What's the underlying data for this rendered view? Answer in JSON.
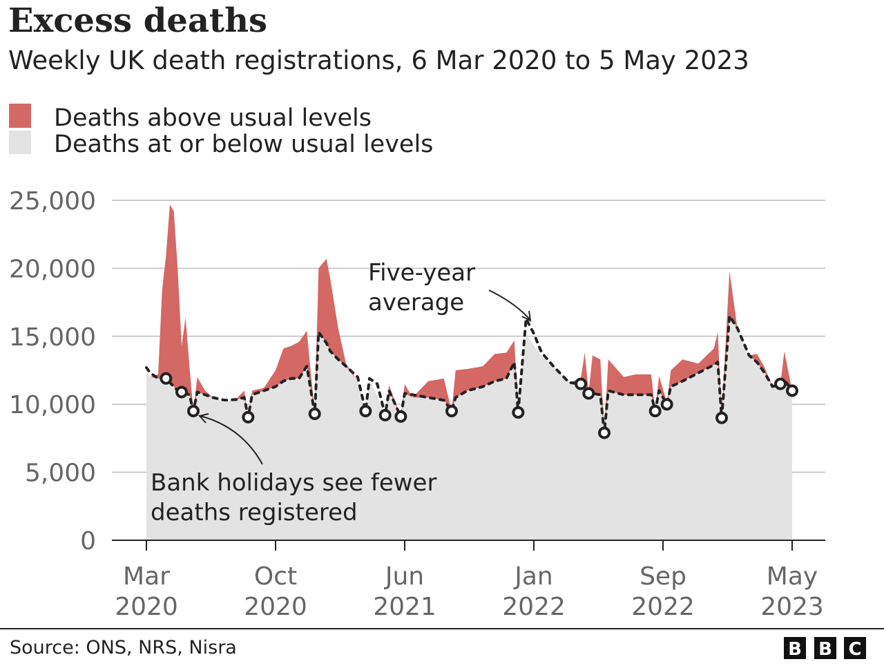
{
  "chart_data": {
    "type": "area",
    "title": "Excess deaths",
    "subtitle": "Weekly UK death registrations, 6 Mar 2020 to 5 May 2023",
    "legend": [
      {
        "label": "Deaths above usual levels",
        "color": "#d46864"
      },
      {
        "label": "Deaths at or below usual levels",
        "color": "#e3e3e3"
      }
    ],
    "legend_placement": "top-left",
    "grid": true,
    "ylim": [
      0,
      25000
    ],
    "yticks": [
      "0",
      "5,000",
      "10,000",
      "15,000",
      "20,000",
      "25,000"
    ],
    "ytick_values": [
      0,
      5000,
      10000,
      15000,
      20000,
      25000
    ],
    "xlim": [
      "2020-03-06",
      "2023-05-05"
    ],
    "xticks": [
      {
        "date": "2020-03-06",
        "month": "Mar",
        "year": "2020"
      },
      {
        "date": "2020-10-23",
        "month": "Oct",
        "year": "2020"
      },
      {
        "date": "2021-06-11",
        "month": "Jun",
        "year": "2021"
      },
      {
        "date": "2022-01-28",
        "month": "Jan",
        "year": "2022"
      },
      {
        "date": "2022-09-16",
        "month": "Sep",
        "year": "2022"
      },
      {
        "date": "2023-05-05",
        "month": "May",
        "year": "2023"
      }
    ],
    "columns": [
      "week_ending",
      "deaths",
      "five_year_average"
    ],
    "points": [
      [
        "2020-03-06",
        12300,
        12700
      ],
      [
        "2020-03-13",
        12000,
        12300
      ],
      [
        "2020-03-27",
        12200,
        11900
      ],
      [
        "2020-04-03",
        18400,
        11900
      ],
      [
        "2020-04-10",
        20900,
        11900
      ],
      [
        "2020-04-17",
        24700,
        11600
      ],
      [
        "2020-04-24",
        24200,
        11300
      ],
      [
        "2020-05-01",
        19900,
        11000
      ],
      [
        "2020-05-08",
        14300,
        10900
      ],
      [
        "2020-05-15",
        16400,
        10800
      ],
      [
        "2020-05-22",
        12800,
        10700
      ],
      [
        "2020-05-29",
        9500,
        9500
      ],
      [
        "2020-06-05",
        12000,
        10900
      ],
      [
        "2020-06-19",
        11000,
        10700
      ],
      [
        "2020-07-03",
        10500,
        10500
      ],
      [
        "2020-07-24",
        10100,
        10300
      ],
      [
        "2020-08-14",
        10400,
        10350
      ],
      [
        "2020-08-28",
        11000,
        10500
      ],
      [
        "2020-09-04",
        9100,
        9050
      ],
      [
        "2020-09-11",
        11000,
        10700
      ],
      [
        "2020-10-02",
        11200,
        11000
      ],
      [
        "2020-10-23",
        12500,
        11300
      ],
      [
        "2020-11-06",
        14100,
        11700
      ],
      [
        "2020-11-20",
        14300,
        11900
      ],
      [
        "2020-12-04",
        14600,
        11900
      ],
      [
        "2020-12-18",
        15400,
        12800
      ],
      [
        "2021-01-01",
        9300,
        9300
      ],
      [
        "2021-01-08",
        20000,
        15300
      ],
      [
        "2021-01-22",
        20700,
        14500
      ],
      [
        "2021-01-29",
        19200,
        13900
      ],
      [
        "2021-02-12",
        15600,
        13300
      ],
      [
        "2021-02-26",
        13000,
        12800
      ],
      [
        "2021-03-19",
        11700,
        12000
      ],
      [
        "2021-04-02",
        9500,
        9500
      ],
      [
        "2021-04-09",
        11700,
        11900
      ],
      [
        "2021-04-23",
        10600,
        11500
      ],
      [
        "2021-05-07",
        9200,
        9200
      ],
      [
        "2021-05-14",
        11400,
        11000
      ],
      [
        "2021-06-04",
        9100,
        9100
      ],
      [
        "2021-06-11",
        11500,
        10800
      ],
      [
        "2021-06-25",
        10500,
        10700
      ],
      [
        "2021-07-23",
        11700,
        10500
      ],
      [
        "2021-08-20",
        11900,
        10300
      ],
      [
        "2021-09-03",
        9500,
        9500
      ],
      [
        "2021-09-10",
        12500,
        10500
      ],
      [
        "2021-10-01",
        12600,
        11000
      ],
      [
        "2021-10-29",
        12800,
        11300
      ],
      [
        "2021-11-19",
        13700,
        11700
      ],
      [
        "2021-12-10",
        13800,
        11900
      ],
      [
        "2021-12-24",
        14700,
        13100
      ],
      [
        "2021-12-31",
        9400,
        9400
      ],
      [
        "2022-01-14",
        15100,
        16300
      ],
      [
        "2022-01-28",
        14300,
        15200
      ],
      [
        "2022-02-11",
        13500,
        13800
      ],
      [
        "2022-03-04",
        12800,
        12800
      ],
      [
        "2022-04-01",
        11600,
        11600
      ],
      [
        "2022-04-22",
        11900,
        11500
      ],
      [
        "2022-04-29",
        13800,
        11200
      ],
      [
        "2022-05-06",
        10900,
        10800
      ],
      [
        "2022-05-13",
        13600,
        10800
      ],
      [
        "2022-05-27",
        13300,
        10700
      ],
      [
        "2022-06-03",
        7900,
        7900
      ],
      [
        "2022-06-10",
        13300,
        11000
      ],
      [
        "2022-07-08",
        12000,
        10700
      ],
      [
        "2022-07-29",
        12200,
        10700
      ],
      [
        "2022-08-26",
        12200,
        10700
      ],
      [
        "2022-09-02",
        9500,
        9500
      ],
      [
        "2022-09-09",
        12100,
        11000
      ],
      [
        "2022-09-23",
        10100,
        10000
      ],
      [
        "2022-09-30",
        12500,
        11300
      ],
      [
        "2022-10-21",
        13300,
        11700
      ],
      [
        "2022-11-18",
        13000,
        12300
      ],
      [
        "2022-12-16",
        14100,
        12900
      ],
      [
        "2022-12-23",
        15300,
        13100
      ],
      [
        "2022-12-30",
        9000,
        9000
      ],
      [
        "2023-01-13",
        19800,
        16500
      ],
      [
        "2023-01-27",
        15600,
        15600
      ],
      [
        "2023-02-17",
        13600,
        13600
      ],
      [
        "2023-03-03",
        13700,
        13100
      ],
      [
        "2023-03-17",
        12700,
        12300
      ],
      [
        "2023-03-31",
        11300,
        11300
      ],
      [
        "2023-04-14",
        11500,
        11500
      ],
      [
        "2023-04-21",
        13900,
        11800
      ],
      [
        "2023-05-05",
        11000,
        11000
      ]
    ],
    "bank_holiday_weeks": [
      "2020-04-10",
      "2020-05-08",
      "2020-05-29",
      "2020-09-04",
      "2021-01-01",
      "2021-04-02",
      "2021-05-07",
      "2021-06-04",
      "2021-09-03",
      "2021-12-31",
      "2022-04-22",
      "2022-05-06",
      "2022-06-03",
      "2022-09-02",
      "2022-09-23",
      "2022-12-30",
      "2023-04-14",
      "2023-05-05"
    ],
    "annotations": {
      "average_line_1": "Five-year",
      "average_line_2": "average",
      "holiday_line_1": "Bank holidays see fewer",
      "holiday_line_2": "deaths registered"
    },
    "colors": {
      "excess": "#d46864",
      "below": "#e3e3e3",
      "average_line": "#222222"
    }
  },
  "footer": {
    "source": "Source: ONS, NRS, Nisra",
    "logo": "BBC"
  }
}
